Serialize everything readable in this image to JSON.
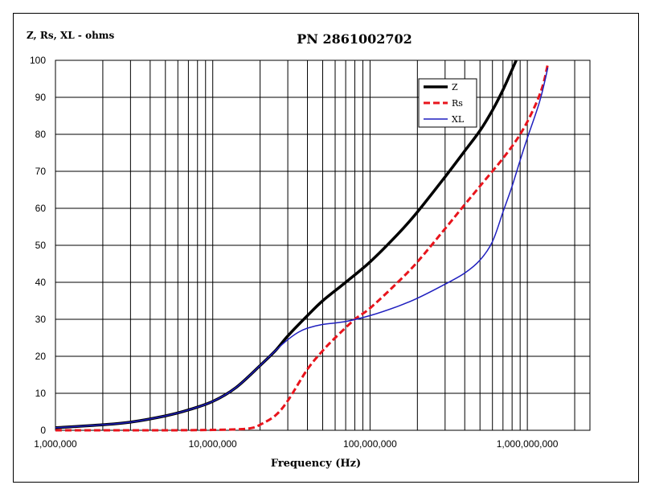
{
  "chart_data": {
    "type": "line",
    "title": "PN 2861002702",
    "ylabel": "Z, Rs, XL - ohms",
    "xlabel": "Frequency (Hz)",
    "x_scale": "log",
    "xlim": [
      1000000,
      2500000000
    ],
    "ylim": [
      0,
      100
    ],
    "x_tick_labels": [
      {
        "value": 1000000,
        "label": "1,000,000"
      },
      {
        "value": 10000000,
        "label": "10,000,000"
      },
      {
        "value": 100000000,
        "label": "100,000,000"
      },
      {
        "value": 1000000000,
        "label": "1,000,000,000"
      }
    ],
    "y_ticks": [
      0,
      10,
      20,
      30,
      40,
      50,
      60,
      70,
      80,
      90,
      100
    ],
    "grid": true,
    "legend": "top-right",
    "series": [
      {
        "name": "Z",
        "color": "#000000",
        "style": "solid-thick",
        "x": [
          1000000,
          2000000,
          3000000,
          5000000,
          7000000,
          10000000,
          14000000,
          20000000,
          25000000,
          30000000,
          40000000,
          50000000,
          70000000,
          100000000,
          150000000,
          200000000,
          300000000,
          400000000,
          500000000,
          600000000,
          700000000,
          800000000,
          850000000
        ],
        "y": [
          0.7,
          1.5,
          2.2,
          3.9,
          5.5,
          7.8,
          11.5,
          17.5,
          21.5,
          25.5,
          31,
          35,
          40,
          45.5,
          53,
          59,
          68.5,
          75.5,
          81,
          86.5,
          92,
          97.5,
          100
        ]
      },
      {
        "name": "Rs",
        "color": "#e8141c",
        "style": "dashed",
        "x": [
          1000000,
          5000000,
          10000000,
          15000000,
          18000000,
          20000000,
          25000000,
          30000000,
          40000000,
          50000000,
          60000000,
          80000000,
          100000000,
          150000000,
          200000000,
          300000000,
          400000000,
          500000000,
          700000000,
          900000000,
          1100000000,
          1250000000,
          1350000000
        ],
        "y": [
          0,
          0,
          0.1,
          0.3,
          0.7,
          1.5,
          4,
          8,
          16.5,
          21.5,
          25,
          30,
          33,
          40,
          45.5,
          54.5,
          61,
          66,
          73.5,
          80,
          87,
          93,
          99
        ]
      },
      {
        "name": "XL",
        "color": "#1f1fbf",
        "style": "solid-thin",
        "x": [
          1000000,
          2000000,
          3000000,
          5000000,
          7000000,
          10000000,
          14000000,
          20000000,
          25000000,
          30000000,
          35000000,
          40000000,
          50000000,
          70000000,
          100000000,
          150000000,
          200000000,
          300000000,
          400000000,
          500000000,
          600000000,
          700000000,
          800000000,
          900000000,
          1000000000,
          1200000000,
          1350000000
        ],
        "y": [
          0.7,
          1.5,
          2.2,
          3.9,
          5.5,
          7.8,
          11.5,
          17.5,
          21.5,
          24.5,
          26.5,
          27.6,
          28.6,
          29.4,
          31,
          33.5,
          35.7,
          39.5,
          42.5,
          46,
          51,
          59,
          66,
          73,
          79,
          89,
          98
        ]
      }
    ]
  }
}
